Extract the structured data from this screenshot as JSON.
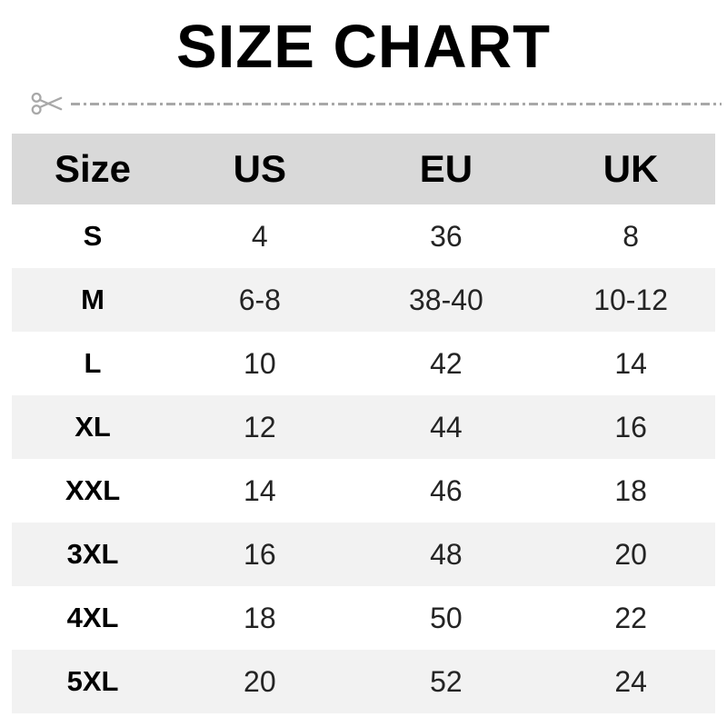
{
  "title": "SIZE CHART",
  "cut_line": {
    "icon": "scissors-icon",
    "line_color": "#a8a8a8"
  },
  "table": {
    "headers": [
      "Size",
      "US",
      "EU",
      "UK"
    ],
    "rows": [
      {
        "size": "S",
        "us": "4",
        "eu": "36",
        "uk": "8"
      },
      {
        "size": "M",
        "us": "6-8",
        "eu": "38-40",
        "uk": "10-12"
      },
      {
        "size": "L",
        "us": "10",
        "eu": "42",
        "uk": "14"
      },
      {
        "size": "XL",
        "us": "12",
        "eu": "44",
        "uk": "16"
      },
      {
        "size": "XXL",
        "us": "14",
        "eu": "46",
        "uk": "18"
      },
      {
        "size": "3XL",
        "us": "16",
        "eu": "48",
        "uk": "20"
      },
      {
        "size": "4XL",
        "us": "18",
        "eu": "50",
        "uk": "22"
      },
      {
        "size": "5XL",
        "us": "20",
        "eu": "52",
        "uk": "24"
      }
    ]
  },
  "colors": {
    "header_bg": "#d9d9d9",
    "alt_row_bg": "#f2f2f2",
    "row_bg": "#ffffff",
    "text": "#000000",
    "number_text": "#242424",
    "cut_line_gray": "#a8a8a8"
  },
  "chart_data": {
    "type": "table",
    "title": "SIZE CHART",
    "columns": [
      "Size",
      "US",
      "EU",
      "UK"
    ],
    "rows": [
      [
        "S",
        "4",
        "36",
        "8"
      ],
      [
        "M",
        "6-8",
        "38-40",
        "10-12"
      ],
      [
        "L",
        "10",
        "42",
        "14"
      ],
      [
        "XL",
        "12",
        "44",
        "16"
      ],
      [
        "XXL",
        "14",
        "46",
        "18"
      ],
      [
        "3XL",
        "16",
        "48",
        "20"
      ],
      [
        "4XL",
        "18",
        "50",
        "22"
      ],
      [
        "5XL",
        "20",
        "52",
        "24"
      ]
    ]
  }
}
